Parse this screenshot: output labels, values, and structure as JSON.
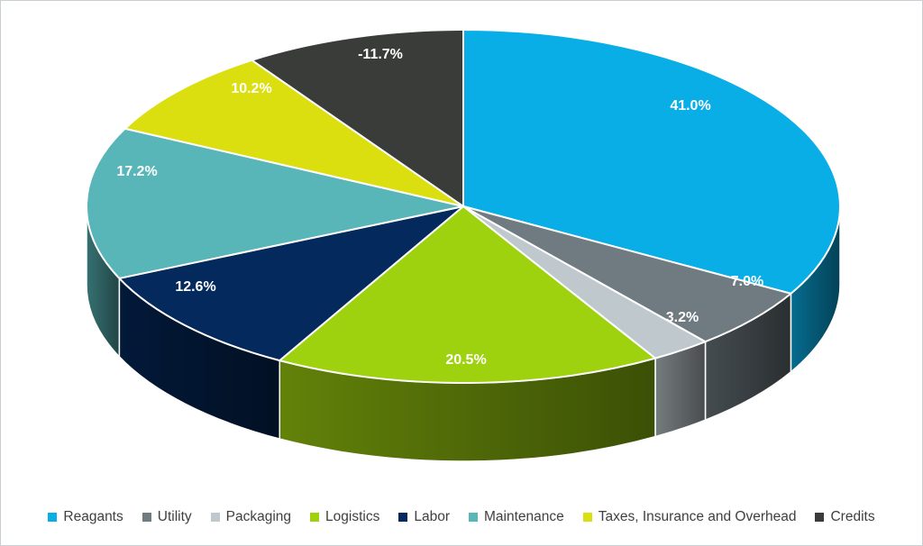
{
  "chart_data": {
    "type": "pie",
    "is_3d": true,
    "title": "",
    "legend_position": "bottom",
    "label_color": "#ffffff",
    "legend_text_color": "#404040",
    "background_color": "#ffffff",
    "slices": [
      {
        "name": "Reagants",
        "value": 41.0,
        "label": "41.0%",
        "color": "#0aaee6"
      },
      {
        "name": "Utility",
        "value": 7.0,
        "label": "7.0%",
        "color": "#6f7b81"
      },
      {
        "name": "Packaging",
        "value": 3.2,
        "label": "3.2%",
        "color": "#bfc9cd"
      },
      {
        "name": "Logistics",
        "value": 20.5,
        "label": "20.5%",
        "color": "#9ed20f"
      },
      {
        "name": "Labor",
        "value": 12.6,
        "label": "12.6%",
        "color": "#04295c"
      },
      {
        "name": "Maintenance",
        "value": 17.2,
        "label": "17.2%",
        "color": "#58b6b8"
      },
      {
        "name": "Taxes, Insurance and Overhead",
        "value": 10.2,
        "label": "10.2%",
        "color": "#dbdf10"
      },
      {
        "name": "Credits",
        "value": -11.7,
        "label": "-11.7%",
        "color": "#3a3c3a"
      }
    ]
  }
}
